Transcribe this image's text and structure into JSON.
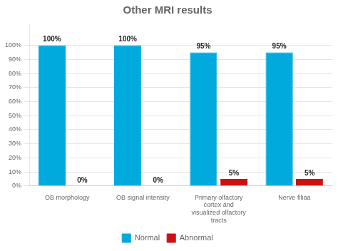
{
  "chart_data": {
    "type": "bar",
    "title": "Other MRI results",
    "categories": [
      "OB morphology",
      "OB signal intensity",
      "Primary olfactory\ncortex and\nvisualized olfactory\ntracts",
      "Nerve filiaa"
    ],
    "series": [
      {
        "name": "Normal",
        "color": "#00AADD",
        "values": [
          100,
          100,
          95,
          95
        ],
        "value_labels": [
          "100%",
          "100%",
          "95%",
          "95%"
        ]
      },
      {
        "name": "Abnormal",
        "color": "#CC1111",
        "values": [
          0,
          0,
          5,
          5
        ],
        "value_labels": [
          "0%",
          "0%",
          "5%",
          "5%"
        ]
      }
    ],
    "ylim": [
      0,
      115
    ],
    "yticks": [
      {
        "value": 0,
        "label": "0%"
      },
      {
        "value": 10,
        "label": "10%"
      },
      {
        "value": 20,
        "label": "20%"
      },
      {
        "value": 30,
        "label": "30%"
      },
      {
        "value": 40,
        "label": "40%"
      },
      {
        "value": 50,
        "label": "50%"
      },
      {
        "value": 60,
        "label": "60%"
      },
      {
        "value": 70,
        "label": "70%"
      },
      {
        "value": 80,
        "label": "80%"
      },
      {
        "value": 90,
        "label": "90%"
      },
      {
        "value": 100,
        "label": "100%"
      }
    ],
    "grid": true,
    "legend": "bottom",
    "data_labels": true
  }
}
